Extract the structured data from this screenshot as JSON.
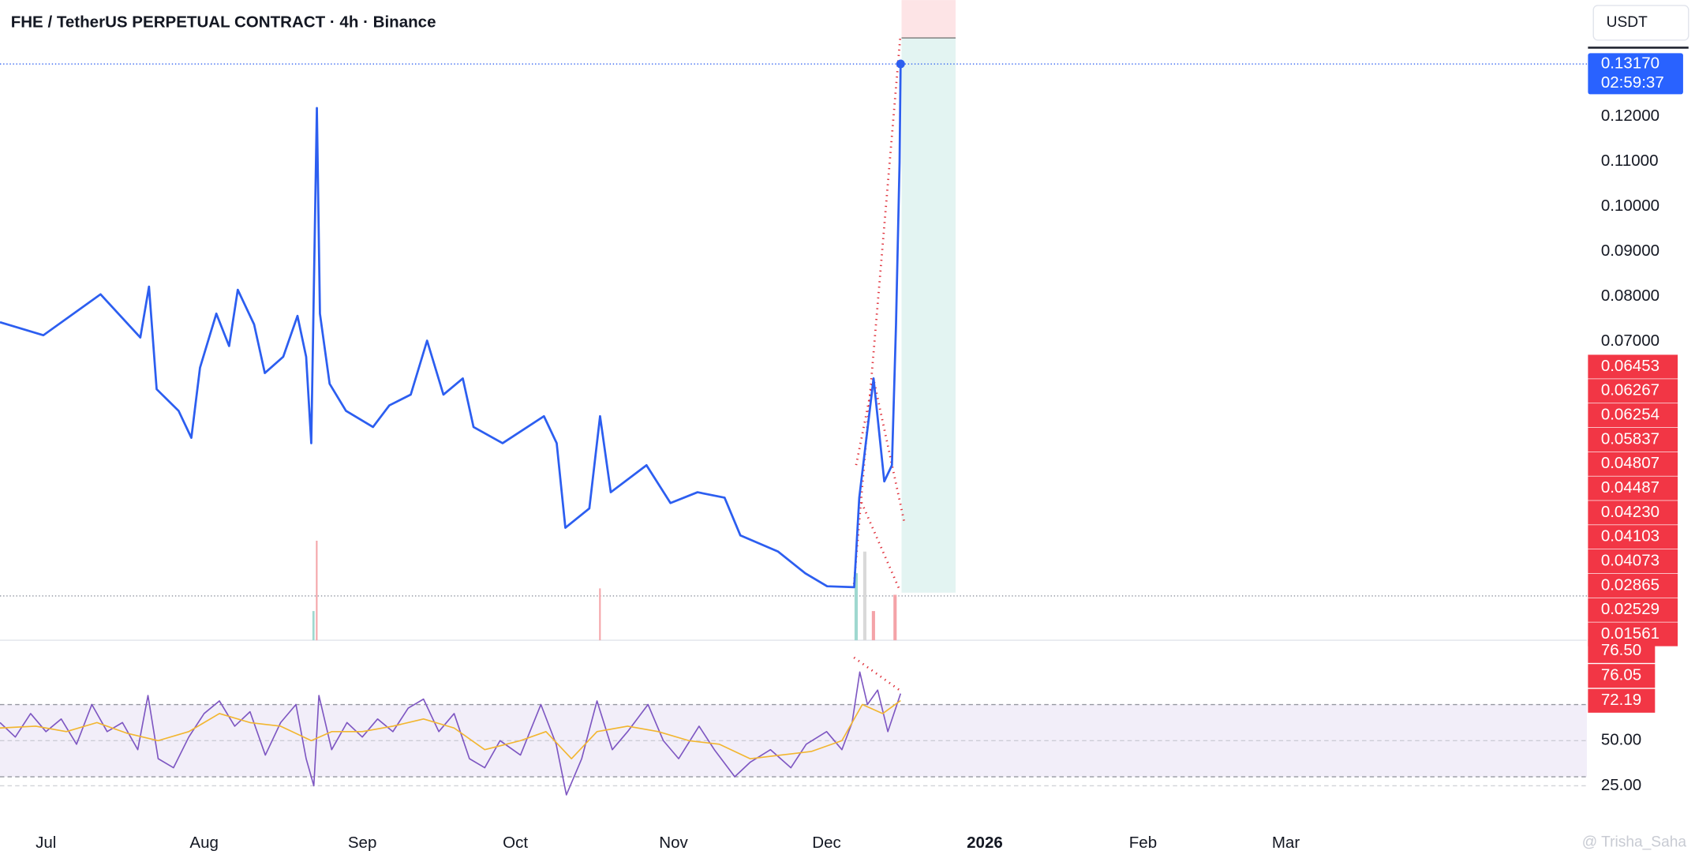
{
  "chart_data": {
    "type": "line",
    "title": "FHE / TetherUS PERPETUAL CONTRACT · 4h · Binance",
    "currency": "USDT",
    "xlim": [
      173,
      484
    ],
    "xticks": [
      {
        "value": 182,
        "label": "Jul"
      },
      {
        "value": 213,
        "label": "Aug"
      },
      {
        "value": 244,
        "label": "Sep"
      },
      {
        "value": 274,
        "label": "Oct"
      },
      {
        "value": 305,
        "label": "Nov"
      },
      {
        "value": 335,
        "label": "Dec"
      },
      {
        "value": 366,
        "label": "2026"
      },
      {
        "value": 397,
        "label": "Feb"
      },
      {
        "value": 425,
        "label": "Mar"
      }
    ],
    "ylim": [
      0.0036,
      0.1459
    ],
    "yticks": [
      {
        "value": 0.07,
        "label": "0.07000"
      },
      {
        "value": 0.08,
        "label": "0.08000"
      },
      {
        "value": 0.09,
        "label": "0.09000"
      },
      {
        "value": 0.1,
        "label": "0.10000"
      },
      {
        "value": 0.11,
        "label": "0.11000"
      },
      {
        "value": 0.12,
        "label": "0.12000"
      }
    ],
    "series": [
      {
        "color": "#2c5ef0",
        "x": [
          173,
          181.5,
          192.7,
          200.5,
          202.2,
          203.7,
          208,
          210.5,
          212.2,
          215.4,
          217.9,
          219.6,
          222.8,
          224.9,
          228.5,
          231.3,
          233,
          234,
          235.1,
          235.7,
          237.6,
          240.8,
          246.1,
          249.3,
          253.5,
          256.7,
          259.9,
          263.7,
          265.8,
          271.5,
          279.6,
          282.1,
          283.8,
          288.5,
          290.6,
          292.7,
          299.7,
          304.4,
          309.7,
          315,
          318.1,
          325.5,
          330.8,
          335.1,
          340.4,
          341.4,
          344.2,
          346.3,
          347.8,
          348.6,
          349.3,
          349.5
        ],
        "values": [
          0.0743,
          0.0714,
          0.0805,
          0.0709,
          0.0822,
          0.0594,
          0.0546,
          0.0486,
          0.0642,
          0.0762,
          0.069,
          0.0815,
          0.0738,
          0.063,
          0.0666,
          0.0757,
          0.0666,
          0.0474,
          0.1219,
          0.0762,
          0.0606,
          0.0546,
          0.051,
          0.0558,
          0.0582,
          0.0702,
          0.0582,
          0.0618,
          0.051,
          0.0474,
          0.0534,
          0.0474,
          0.0286,
          0.0329,
          0.0534,
          0.0365,
          0.0425,
          0.0341,
          0.0365,
          0.0353,
          0.0269,
          0.0233,
          0.0185,
          0.0156,
          0.0154,
          0.0353,
          0.0618,
          0.0389,
          0.0425,
          0.0738,
          0.1099,
          0.1317
        ]
      }
    ],
    "price_tag": {
      "value": 0.1317,
      "label": "0.13170",
      "timer": "02:59:37"
    },
    "side_tags": [
      "0.06453",
      "0.06267",
      "0.06254",
      "0.05837",
      "0.04807",
      "0.04487",
      "0.04230",
      "0.04103",
      "0.04073",
      "0.02865",
      "0.02529",
      "0.01561"
    ],
    "rsi": {
      "ylim": [
        5,
        102
      ],
      "yticks": [
        {
          "value": 25,
          "label": "25.00"
        },
        {
          "value": 50,
          "label": "50.00"
        }
      ],
      "band": [
        30,
        70
      ],
      "tags": [
        "76.50",
        "76.05",
        "72.19"
      ],
      "series": [
        {
          "color": "#7e57c2",
          "x": [
            173,
            176,
            179,
            182,
            185,
            188,
            191,
            194,
            197,
            200,
            202,
            204,
            207,
            210,
            213,
            216,
            219,
            222,
            225,
            228,
            231,
            233,
            234.5,
            235.5,
            238,
            241,
            244,
            247,
            250,
            253,
            256,
            259,
            262,
            265,
            268,
            271,
            275,
            279,
            282,
            284,
            287,
            290,
            293,
            296,
            300,
            303,
            306,
            310,
            313,
            317,
            320,
            324,
            328,
            331,
            335,
            338,
            340,
            341.5,
            343,
            345,
            347,
            349.5
          ],
          "values": [
            60,
            52,
            65,
            55,
            62,
            48,
            70,
            55,
            60,
            45,
            75,
            40,
            35,
            52,
            65,
            72,
            58,
            66,
            42,
            60,
            70,
            40,
            25,
            75,
            45,
            60,
            52,
            62,
            55,
            68,
            73,
            55,
            65,
            40,
            35,
            50,
            42,
            70,
            48,
            20,
            40,
            72,
            45,
            55,
            70,
            50,
            40,
            58,
            45,
            30,
            38,
            45,
            35,
            48,
            55,
            45,
            60,
            88,
            70,
            78,
            55,
            76.05
          ]
        },
        {
          "color": "#f2b630",
          "x": [
            173,
            180,
            186,
            192,
            198,
            204,
            210,
            216,
            222,
            228,
            234,
            238,
            244,
            250,
            256,
            262,
            268,
            275,
            280,
            285,
            290,
            296,
            302,
            308,
            314,
            320,
            326,
            332,
            338,
            342,
            346,
            349.5
          ],
          "values": [
            57,
            58,
            55,
            60,
            54,
            50,
            55,
            65,
            60,
            58,
            50,
            55,
            55,
            58,
            62,
            57,
            45,
            50,
            55,
            40,
            55,
            58,
            55,
            50,
            48,
            40,
            42,
            44,
            50,
            70,
            65,
            72.19
          ]
        }
      ]
    },
    "watermark": "@ Trisha_Saha"
  }
}
